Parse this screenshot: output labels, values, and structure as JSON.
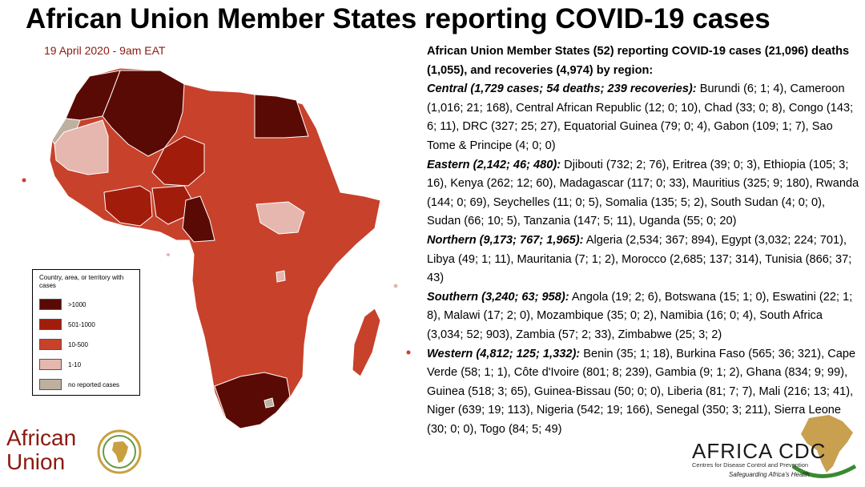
{
  "title": "African Union Member States reporting COVID-19 cases",
  "date": "19 April 2020 - 9am EAT",
  "colors": {
    "over_1000": "#5a0a04",
    "c501_1000": "#a21c0c",
    "c10_500": "#c8412b",
    "c1_10": "#e6b7ae",
    "none": "#bdb0a0",
    "date_text": "#8b1a10"
  },
  "legend": {
    "title": "Country, area, or territory with cases",
    "items": [
      {
        "label": ">1000",
        "color": "#5a0a04"
      },
      {
        "label": "501-1000",
        "color": "#a21c0c"
      },
      {
        "label": "10-500",
        "color": "#c8412b"
      },
      {
        "label": "1-10",
        "color": "#e6b7ae"
      },
      {
        "label": "no reported cases",
        "color": "#bdb0a0"
      }
    ]
  },
  "summary": {
    "lead": "African Union Member States (52) reporting COVID-19 cases (21,096) deaths (1,055), and recoveries (4,974) by region:",
    "regions": [
      {
        "name": "Central (1,729 cases; 54 deaths; 239 recoveries):",
        "text": "  Burundi (6; 1; 4), Cameroon (1,016; 21; 168), Central African Republic (12; 0; 10), Chad (33; 0; 8), Congo (143; 6; 11), DRC (327; 25; 27), Equatorial Guinea (79; 0; 4), Gabon (109; 1; 7), Sao Tome & Principe (4; 0; 0)"
      },
      {
        "name": "Eastern (2,142; 46; 480):",
        "text": " Djibouti (732; 2; 76), Eritrea (39; 0; 3), Ethiopia (105; 3; 16), Kenya (262; 12; 60), Madagascar (117; 0; 33), Mauritius (325; 9; 180), Rwanda (144; 0; 69), Seychelles (11; 0; 5), Somalia (135; 5; 2), South Sudan (4; 0; 0), Sudan (66; 10; 5), Tanzania (147; 5; 11), Uganda (55; 0; 20)"
      },
      {
        "name": "Northern (9,173; 767; 1,965):",
        "text": " Algeria (2,534; 367; 894), Egypt (3,032; 224; 701), Libya (49; 1; 11), Mauritania (7; 1; 2), Morocco (2,685; 137; 314), Tunisia (866; 37; 43)"
      },
      {
        "name": "Southern (3,240; 63; 958):",
        "text": " Angola (19; 2; 6), Botswana (15; 1; 0), Eswatini (22; 1; 8), Malawi (17; 2; 0), Mozambique (35; 0; 2),  Namibia (16; 0; 4), South Africa (3,034; 52; 903), Zambia (57; 2; 33), Zimbabwe (25; 3; 2)"
      },
      {
        "name": "Western (4,812; 125; 1,332):",
        "text": " Benin (35; 1; 18), Burkina Faso (565; 36; 321), Cape Verde (58; 1; 1), Côte d'Ivoire (801; 8; 239), Gambia (9; 1; 2), Ghana (834; 9; 99), Guinea (518; 3; 65), Guinea-Bissau (50; 0; 0), Liberia (81; 7; 7), Mali (216; 13; 41), Niger (639; 19; 113), Nigeria (542; 19; 166), Senegal (350; 3; 211), Sierra Leone (30; 0; 0), Togo (84; 5; 49)"
      }
    ]
  },
  "logos": {
    "au": {
      "line1": "African",
      "line2": "Union"
    },
    "cdc": {
      "name": "AFRICA CDC",
      "subtitle": "Centres for Disease Control and Prevention",
      "tagline": "Safeguarding Africa's Health"
    }
  }
}
